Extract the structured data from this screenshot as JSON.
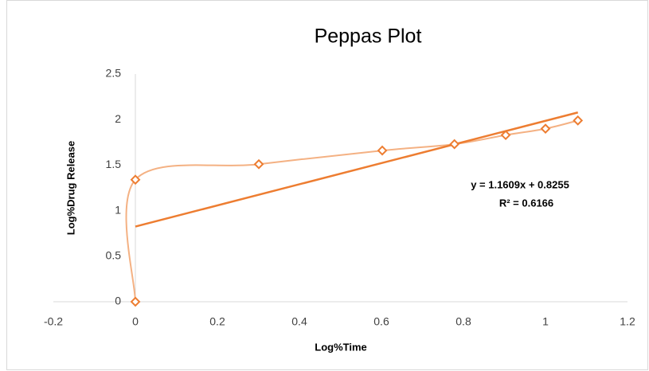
{
  "chart_data": {
    "type": "scatter",
    "title": "Peppas Plot",
    "xlabel": "Log%Time",
    "ylabel": "Log%Drug Release",
    "x": [
      0,
      0,
      0.301,
      0.602,
      0.778,
      0.903,
      1,
      1.079
    ],
    "series": [
      {
        "color": "#ed7d31",
        "line_color": "#f4b183",
        "values": [
          0,
          1.34,
          1.51,
          1.66,
          1.73,
          1.83,
          1.9,
          1.99
        ]
      }
    ],
    "trendline": {
      "slope": 1.1609,
      "intercept": 0.8255,
      "color": "#ed7d31",
      "equation": "y = 1.1609x + 0.8255",
      "r2": "R² = 0.6166"
    },
    "xlim": [
      -0.2,
      1.2
    ],
    "xticks": [
      -0.2,
      0,
      0.2,
      0.4,
      0.6,
      0.8,
      1,
      1.2
    ],
    "ylim": [
      0,
      2.5
    ],
    "yticks": [
      0,
      0.5,
      1,
      1.5,
      2,
      2.5
    ],
    "grid": false
  }
}
